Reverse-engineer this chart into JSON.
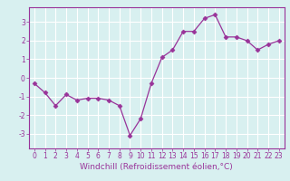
{
  "x": [
    0,
    1,
    2,
    3,
    4,
    5,
    6,
    7,
    8,
    9,
    10,
    11,
    12,
    13,
    14,
    15,
    16,
    17,
    18,
    19,
    20,
    21,
    22,
    23
  ],
  "y": [
    -0.3,
    -0.8,
    -1.5,
    -0.9,
    -1.2,
    -1.1,
    -1.1,
    -1.2,
    -1.5,
    -3.1,
    -2.2,
    -0.3,
    1.1,
    1.5,
    2.5,
    2.5,
    3.2,
    3.4,
    2.2,
    2.2,
    2.0,
    1.5,
    1.8,
    2.0
  ],
  "line_color": "#993399",
  "marker": "D",
  "marker_size": 2.5,
  "bg_color": "#d8f0f0",
  "grid_color": "#b8d8d8",
  "ylim": [
    -3.8,
    3.8
  ],
  "xlim": [
    -0.5,
    23.5
  ],
  "yticks": [
    -3,
    -2,
    -1,
    0,
    1,
    2,
    3
  ],
  "xticks": [
    0,
    1,
    2,
    3,
    4,
    5,
    6,
    7,
    8,
    9,
    10,
    11,
    12,
    13,
    14,
    15,
    16,
    17,
    18,
    19,
    20,
    21,
    22,
    23
  ],
  "tick_color": "#993399",
  "label_color": "#993399",
  "tick_fontsize": 5.5,
  "xlabel": "Windchill (Refroidissement éolien,°C)",
  "xlabel_fontsize": 6.5,
  "spine_color": "#993399"
}
